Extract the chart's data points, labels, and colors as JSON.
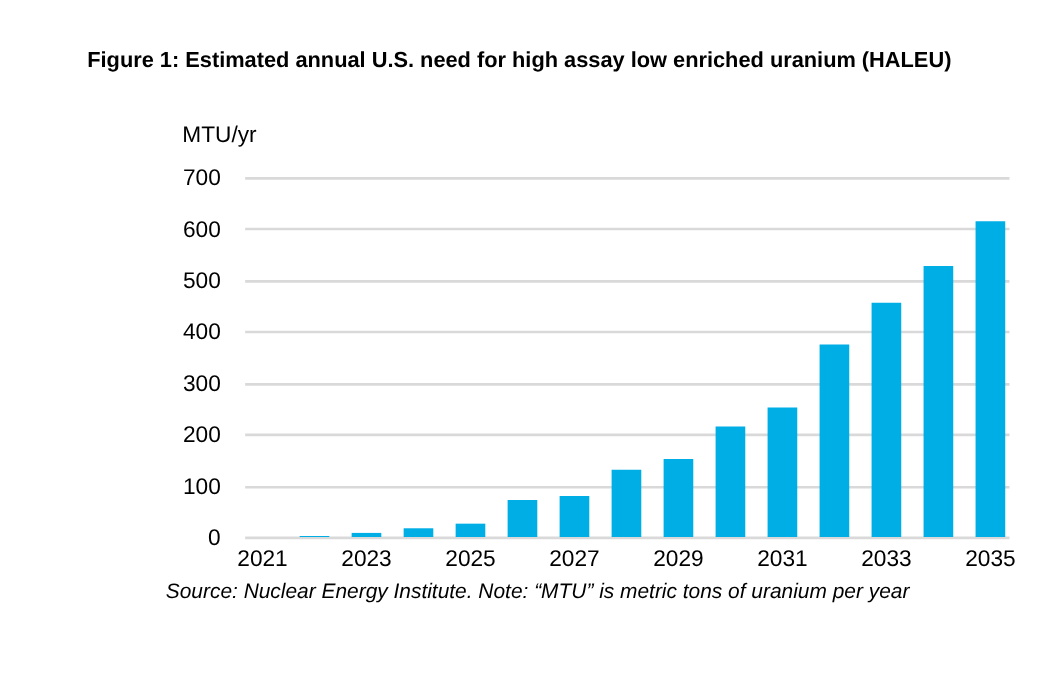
{
  "chart_data": {
    "type": "bar",
    "title": "Figure 1:  Estimated annual U.S. need for high assay low enriched uranium (HALEU)",
    "ylabel": "MTU/yr",
    "categories": [
      "2021",
      null,
      "2023",
      null,
      "2025",
      null,
      "2027",
      null,
      "2029",
      null,
      "2031",
      null,
      "2033",
      null,
      "2035"
    ],
    "values": [
      0,
      2,
      8,
      17,
      26,
      72,
      80,
      131,
      152,
      215,
      252,
      375,
      456,
      528,
      615
    ],
    "color": "#00aee6",
    "ylim": [
      0,
      700
    ],
    "yticks": [
      0,
      100,
      200,
      300,
      400,
      500,
      600,
      700
    ],
    "grid": "y",
    "annotations": [
      "Source: Nuclear Energy Institute. Note: “MTU” is metric tons of uranium per year"
    ]
  }
}
